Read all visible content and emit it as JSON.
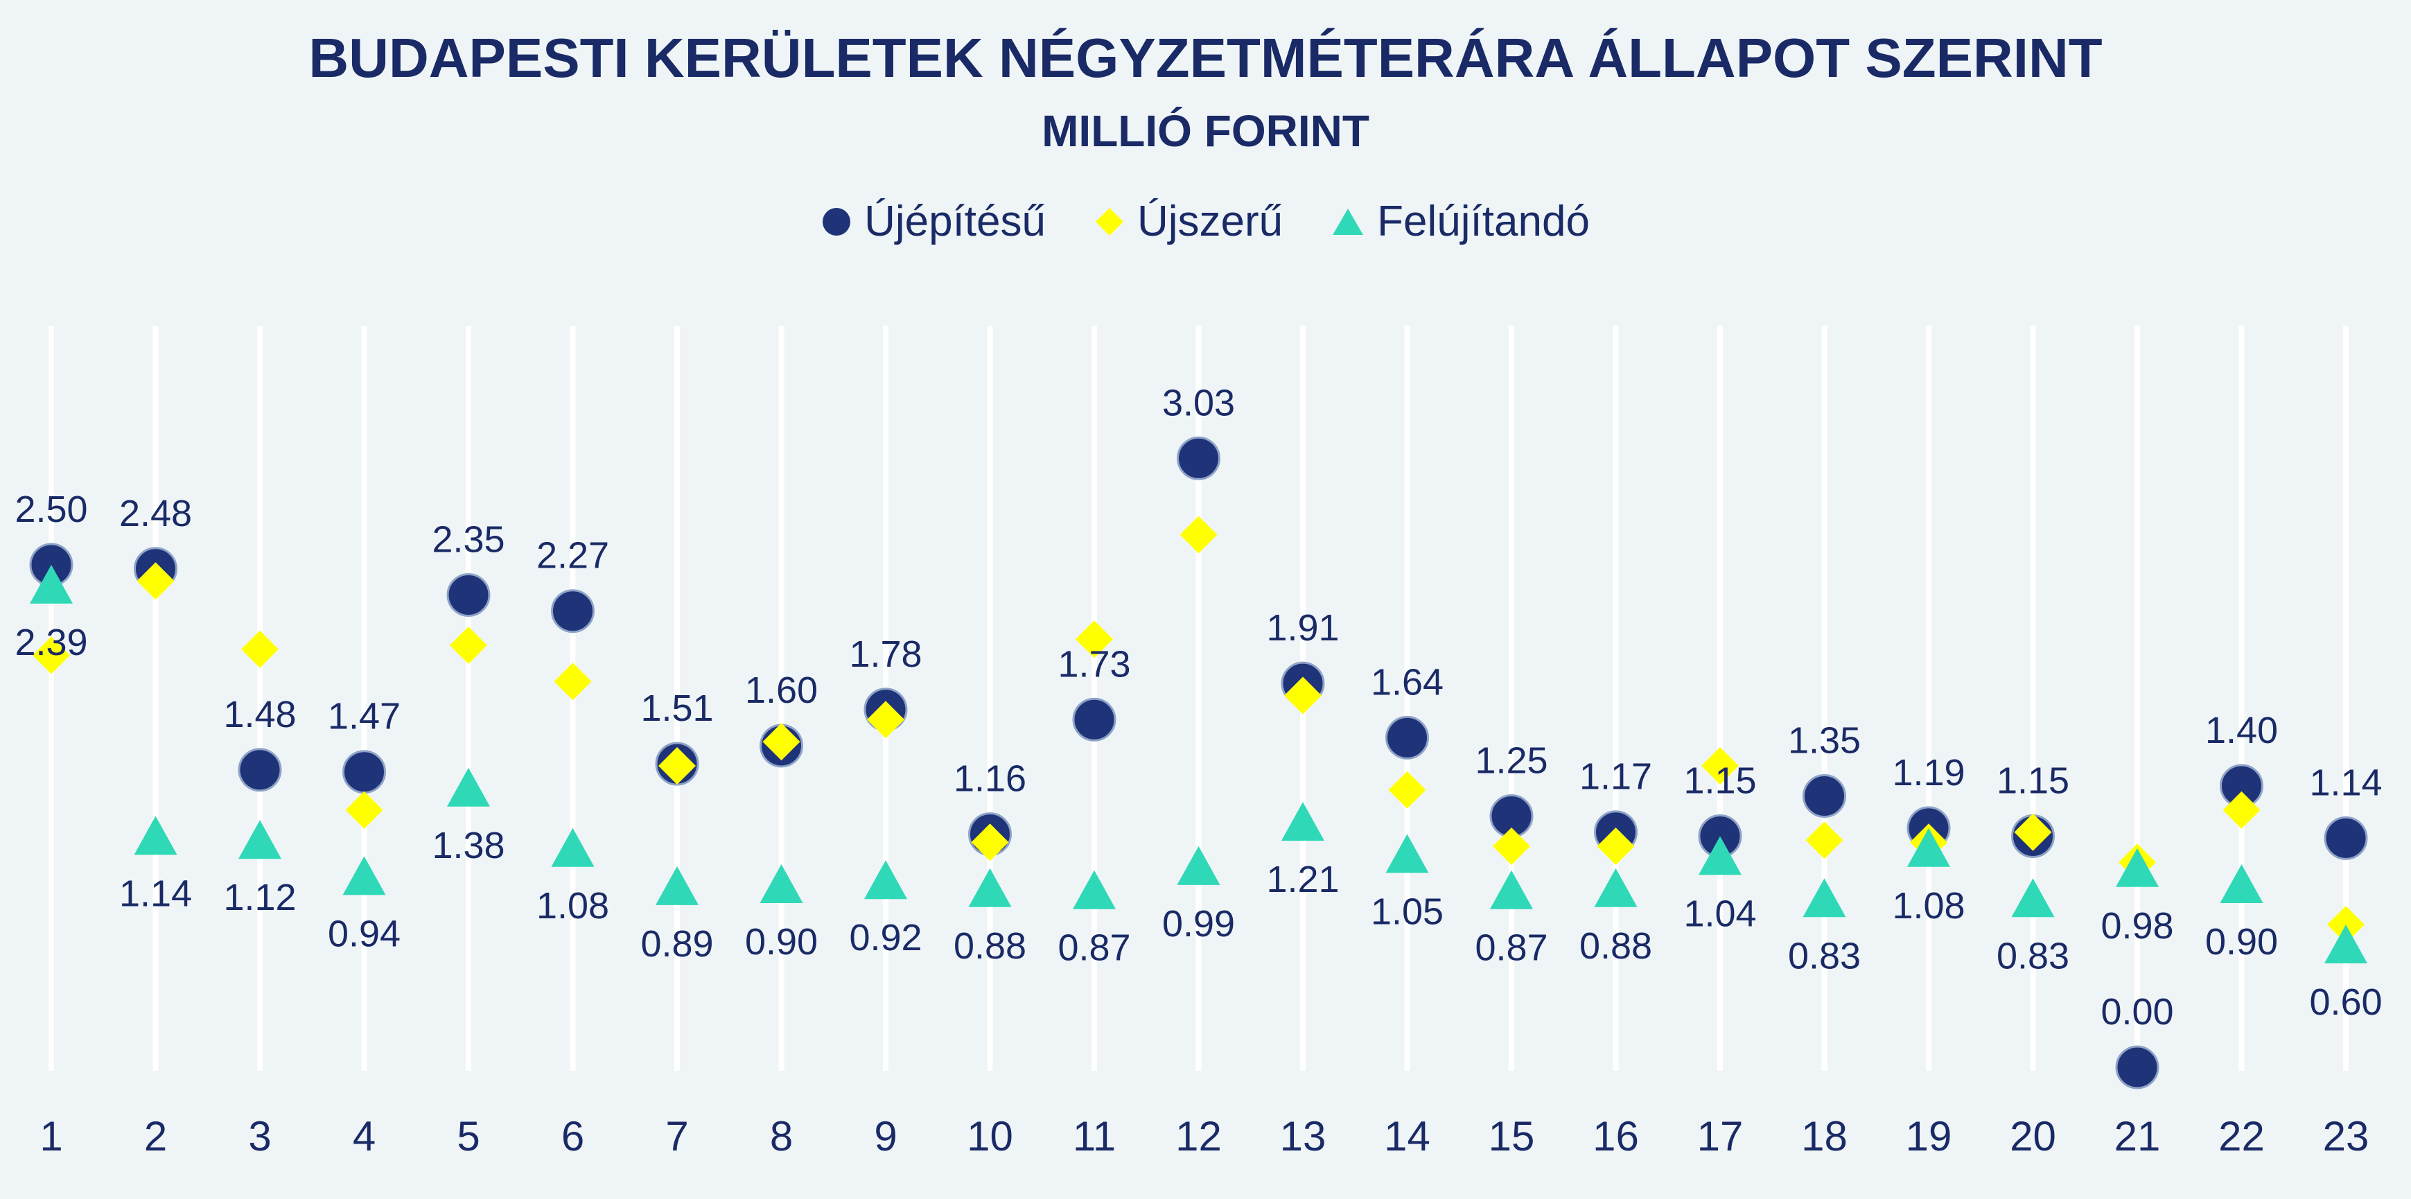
{
  "chart_data": {
    "type": "scatter",
    "title": "BUDAPESTI KERÜLETEK NÉGYZETMÉTERÁRA ÁLLAPOT SZERINT",
    "subtitle": "MILLIÓ FORINT",
    "categories": [
      "1",
      "2",
      "3",
      "4",
      "5",
      "6",
      "7",
      "8",
      "9",
      "10",
      "11",
      "12",
      "13",
      "14",
      "15",
      "16",
      "17",
      "18",
      "19",
      "20",
      "21",
      "22",
      "23"
    ],
    "series": [
      {
        "name": "Újépítésű",
        "color": "#1f3378",
        "marker": "circle",
        "values": [
          2.5,
          2.48,
          1.48,
          1.47,
          2.35,
          2.27,
          1.51,
          1.6,
          1.78,
          1.16,
          1.73,
          3.03,
          1.91,
          1.64,
          1.25,
          1.17,
          1.15,
          1.35,
          1.19,
          1.15,
          0.0,
          1.4,
          1.14
        ],
        "labels_shown": true
      },
      {
        "name": "Újszerű",
        "color": "#ffff00",
        "marker": "diamond",
        "values": [
          2.05,
          2.42,
          2.08,
          1.28,
          2.1,
          1.92,
          1.5,
          1.62,
          1.73,
          1.12,
          2.13,
          2.65,
          1.85,
          1.38,
          1.1,
          1.1,
          1.5,
          1.13,
          1.12,
          1.17,
          1.02,
          1.28,
          0.71
        ],
        "labels_shown": false
      },
      {
        "name": "Felújítandó",
        "color": "#2fd9b7",
        "marker": "triangle",
        "values": [
          2.39,
          1.14,
          1.12,
          0.94,
          1.38,
          1.08,
          0.89,
          0.9,
          0.92,
          0.88,
          0.87,
          0.99,
          1.21,
          1.05,
          0.87,
          0.88,
          1.04,
          0.83,
          1.08,
          0.83,
          0.98,
          0.9,
          0.6
        ],
        "labels_shown": true
      }
    ],
    "ylim": [
      0,
      3.5
    ],
    "grid": "vertical lines at each category",
    "legend_position": "top-center",
    "xlabel": "",
    "ylabel": ""
  }
}
